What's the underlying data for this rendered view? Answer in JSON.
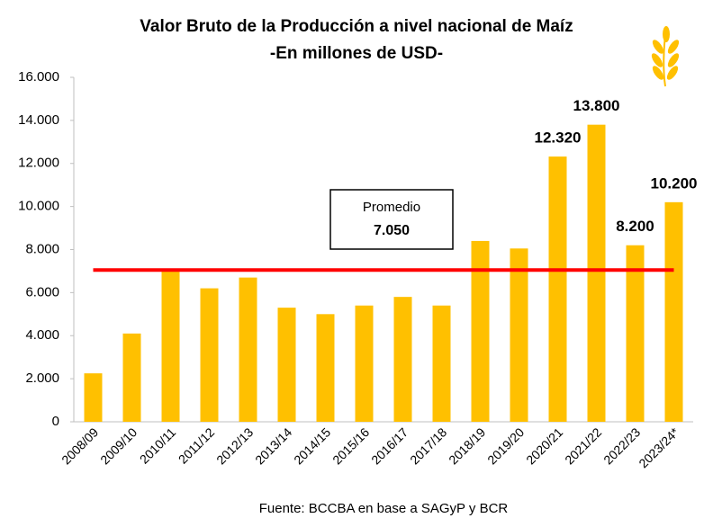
{
  "chart_data": {
    "type": "bar",
    "title": "Valor Bruto de la Producción a nivel nacional de Maíz",
    "subtitle": "-En millones de USD-",
    "source": "Fuente: BCCBA en base a SAGyP y BCR",
    "categories": [
      "2008/09",
      "2009/10",
      "2010/11",
      "2011/12",
      "2012/13",
      "2013/14",
      "2014/15",
      "2015/16",
      "2016/17",
      "2017/18",
      "2018/19",
      "2019/20",
      "2020/21",
      "2021/22",
      "2022/23",
      "2023/24*"
    ],
    "values": [
      2250,
      4100,
      7100,
      6200,
      6700,
      5300,
      5000,
      5400,
      5800,
      5400,
      8400,
      8050,
      12320,
      13800,
      8200,
      10200
    ],
    "value_labels": [
      null,
      null,
      null,
      null,
      null,
      null,
      null,
      null,
      null,
      null,
      null,
      null,
      "12.320",
      "13.800",
      "8.200",
      "10.200"
    ],
    "color": "#ffc000",
    "average": {
      "label": "Promedio",
      "value": 7050,
      "value_label": "7.050",
      "color": "#ff0000"
    },
    "ylim": [
      0,
      16000
    ],
    "yticks": [
      0,
      {
        "value": 2000,
        "label": "2.000"
      },
      {
        "value": 4000,
        "label": "4.000"
      },
      {
        "value": 6000,
        "label": "6.000"
      },
      {
        "value": 8000,
        "label": "8.000"
      },
      {
        "value": 10000,
        "label": "10.000"
      },
      {
        "value": 12000,
        "label": "12.000"
      },
      {
        "value": 14000,
        "label": "14.000"
      },
      {
        "value": 16000,
        "label": "16.000"
      }
    ],
    "grid": false
  }
}
